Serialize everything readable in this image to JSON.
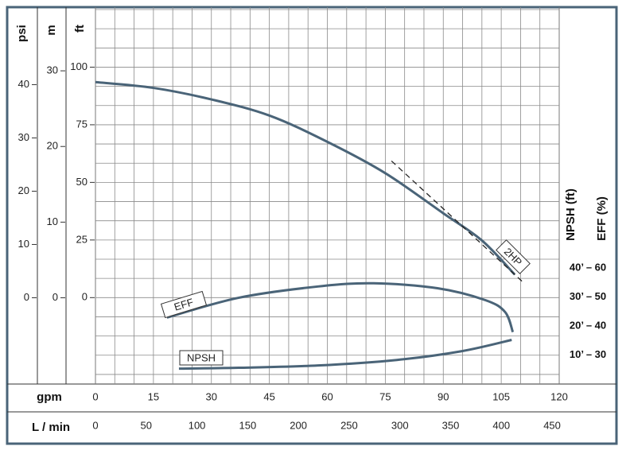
{
  "chart_data": {
    "type": "line",
    "x_label": "gpm",
    "xlim": [
      0,
      120
    ],
    "xticks": [
      0,
      15,
      30,
      45,
      60,
      75,
      90,
      105,
      120
    ],
    "x2_label": "L / min",
    "x2lim": [
      0,
      457
    ],
    "x2ticks": [
      0,
      50,
      100,
      150,
      200,
      250,
      300,
      350,
      400,
      450
    ],
    "y_label": "ft",
    "ylim": [
      -37.5,
      125
    ],
    "yticks": [
      0,
      25,
      50,
      75,
      100
    ],
    "psi_label": "psi",
    "psi_lim": [
      -16.2,
      54.1
    ],
    "psi_ticks": [
      0,
      10,
      20,
      30,
      40
    ],
    "m_label": "m",
    "m_lim": [
      -11.4,
      38.1
    ],
    "m_ticks": [
      0,
      10,
      20,
      30
    ],
    "y2_label": "NPSH (ft)",
    "y2lim": [
      0,
      129
    ],
    "y2ticks": [
      {
        "value": 40,
        "label": "40’ – 60"
      },
      {
        "value": 30,
        "label": "30’ – 50"
      },
      {
        "value": 20,
        "label": "20’ – 40"
      },
      {
        "value": 10,
        "label": "10’ – 30"
      }
    ],
    "y3_label": "EFF (%)",
    "y3lim": [
      20,
      149
    ],
    "grid": true,
    "series": [
      {
        "name": "2HP",
        "color": "#4a6478",
        "x": [
          0,
          15,
          30,
          45,
          60,
          75,
          90,
          100,
          108.5
        ],
        "values": [
          93.5,
          91,
          86,
          79,
          67.6,
          54,
          36.6,
          24.8,
          10
        ]
      },
      {
        "name": "EFF",
        "color": "#4a6478",
        "axis": "y3",
        "x": [
          18.5,
          37,
          57.6,
          72,
          88.5,
          100.9,
          106,
          108
        ],
        "values": [
          42.9,
          49.7,
          53.6,
          54.7,
          53,
          48.9,
          44.8,
          37.9
        ]
      },
      {
        "name": "NPSH",
        "color": "#4a6478",
        "axis": "y2",
        "x": [
          21.6,
          37,
          57.6,
          78,
          94.7,
          107.7
        ],
        "values": [
          5.3,
          5.6,
          6.4,
          8.3,
          11.3,
          15.2
        ]
      }
    ],
    "motor_line": {
      "color": "#222222",
      "dashed": true,
      "x": [
        76.6,
        110.7
      ],
      "values": [
        59.3,
        6.6
      ]
    }
  }
}
